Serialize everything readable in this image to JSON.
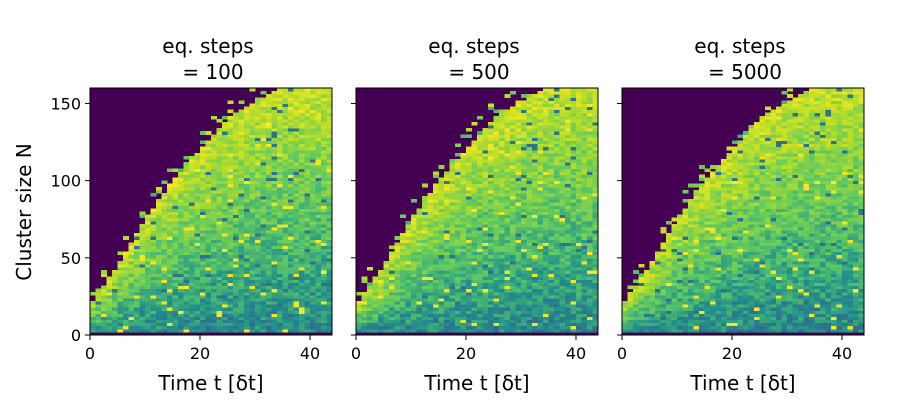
{
  "chart_data": {
    "type": "heatmap",
    "shared_ylabel": "Cluster size N",
    "panels": [
      {
        "title_line1": "eq. steps",
        "title_line2": "= 100",
        "xlabel": "Time t [δt]"
      },
      {
        "title_line1": "eq. steps",
        "title_line2": "= 500",
        "xlabel": "Time t [δt]"
      },
      {
        "title_line1": "eq. steps",
        "title_line2": "= 5000",
        "xlabel": "Time t [δt]"
      }
    ],
    "x_range": [
      0,
      44
    ],
    "y_range": [
      0,
      160
    ],
    "x_ticks": [
      "0",
      "20",
      "40"
    ],
    "x_tick_values": [
      0,
      20,
      40
    ],
    "y_ticks": [
      "0",
      "50",
      "100",
      "150"
    ],
    "y_tick_values": [
      0,
      50,
      100,
      150
    ],
    "colormap": "viridis",
    "colors": {
      "background_empty": "#440154",
      "low": "#31688e",
      "mid": "#35b779",
      "high": "#fde725"
    },
    "front_boundary": {
      "description_points_t": [
        0,
        5,
        10,
        15,
        20,
        25,
        30,
        35,
        40,
        44
      ],
      "description_points_N": [
        20,
        45,
        75,
        100,
        120,
        140,
        150,
        160,
        160,
        160
      ]
    }
  }
}
